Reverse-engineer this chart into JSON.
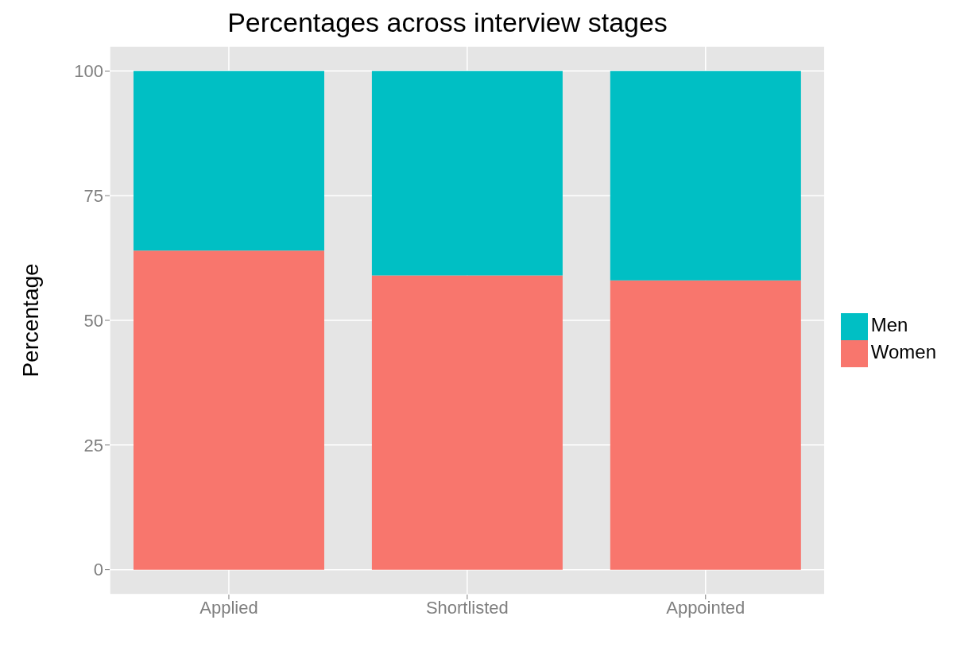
{
  "chart_data": {
    "type": "bar",
    "title": "Percentages across interview stages",
    "ylabel": "Percentage",
    "categories": [
      "Applied",
      "Shortlisted",
      "Appointed"
    ],
    "series": [
      {
        "name": "Women",
        "color": "#f8766d",
        "values": [
          64,
          59,
          58
        ]
      },
      {
        "name": "Men",
        "color": "#00bfc4",
        "values": [
          36,
          41,
          42
        ]
      }
    ],
    "stacked": true,
    "ylim": [
      -5,
      105
    ],
    "yticks": [
      0,
      25,
      50,
      75,
      100
    ],
    "grid": true,
    "legend": "right"
  }
}
